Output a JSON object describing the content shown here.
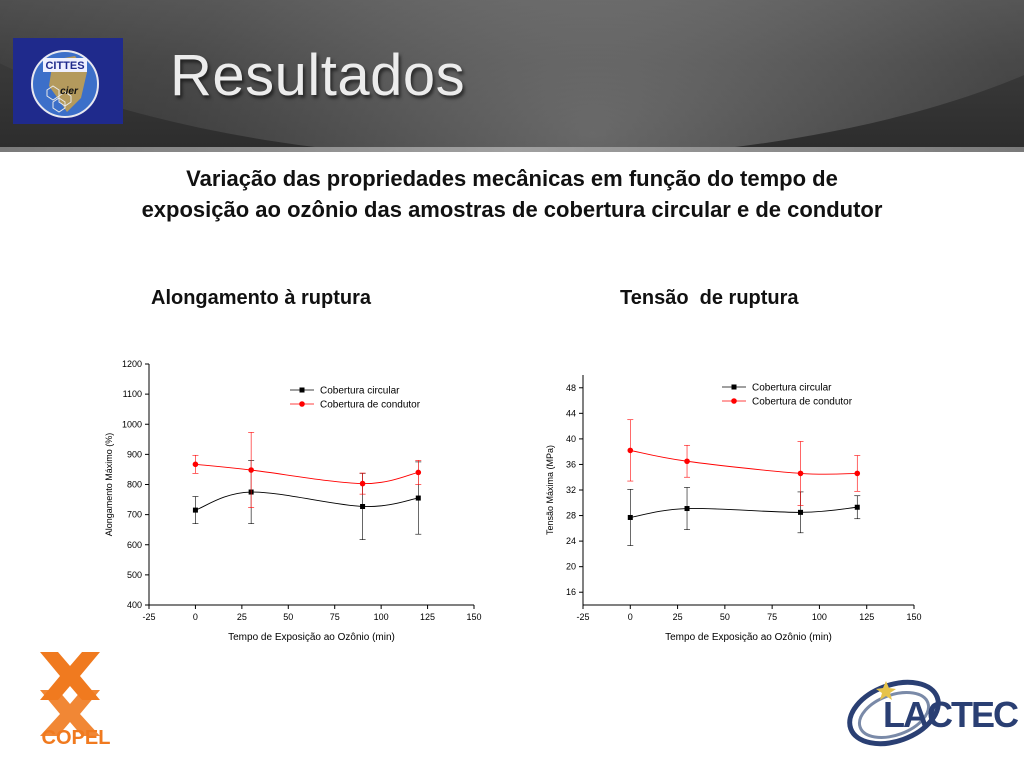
{
  "slide": {
    "title": "Resultados",
    "subtitle_line1": "Variação das propriedades mecânicas em função do tempo de",
    "subtitle_line2": "exposição ao ozônio das amostras de cobertura circular e de condutor",
    "left_heading": "Alongamento à ruptura",
    "right_heading": "Tensão  de ruptura"
  },
  "logos": {
    "top_left_text1": "CITTES",
    "top_left_text2": "cier",
    "bottom_left": "COPEL",
    "bottom_right": "LACTEC"
  },
  "colors": {
    "series_black": "#000000",
    "series_red": "#ff0000",
    "copel_orange": "#f07a1f",
    "lactec_blue": "#2a3f73"
  },
  "chart_data": [
    {
      "type": "line",
      "xlabel": "Tempo de Exposição ao Ozônio (min)",
      "ylabel": "Alongamento Máximo (%)",
      "xlim": [
        -25,
        150
      ],
      "ylim": [
        400,
        1200
      ],
      "xticks": [
        -25,
        0,
        25,
        50,
        75,
        100,
        125,
        150
      ],
      "yticks": [
        400,
        500,
        600,
        700,
        800,
        900,
        1000,
        1100,
        1200
      ],
      "legend_position": "top-right",
      "series": [
        {
          "name": "Cobertura circular",
          "marker": "square",
          "x": [
            0,
            30,
            90,
            120
          ],
          "y": [
            715,
            775,
            727,
            755
          ],
          "err": [
            45,
            105,
            110,
            120
          ]
        },
        {
          "name": "Cobertura de condutor",
          "marker": "circle",
          "x": [
            0,
            30,
            90,
            120
          ],
          "y": [
            867,
            848,
            803,
            840
          ],
          "err": [
            30,
            125,
            35,
            40
          ]
        }
      ]
    },
    {
      "type": "line",
      "xlabel": "Tempo de Exposição ao Ozônio (min)",
      "ylabel": "Tensão Máxima (MPa)",
      "xlim": [
        -25,
        150
      ],
      "ylim": [
        14,
        50
      ],
      "xticks": [
        -25,
        0,
        25,
        50,
        75,
        100,
        125,
        150
      ],
      "yticks": [
        16,
        20,
        24,
        28,
        32,
        36,
        40,
        44,
        48
      ],
      "legend_position": "top-right",
      "series": [
        {
          "name": "Cobertura circular",
          "marker": "square",
          "x": [
            0,
            30,
            90,
            120
          ],
          "y": [
            27.7,
            29.1,
            28.5,
            29.3
          ],
          "err": [
            4.4,
            3.3,
            3.2,
            1.8
          ]
        },
        {
          "name": "Cobertura de condutor",
          "marker": "circle",
          "x": [
            0,
            30,
            90,
            120
          ],
          "y": [
            38.2,
            36.5,
            34.6,
            34.6
          ],
          "err": [
            4.8,
            2.5,
            5.0,
            2.8
          ]
        }
      ]
    }
  ]
}
